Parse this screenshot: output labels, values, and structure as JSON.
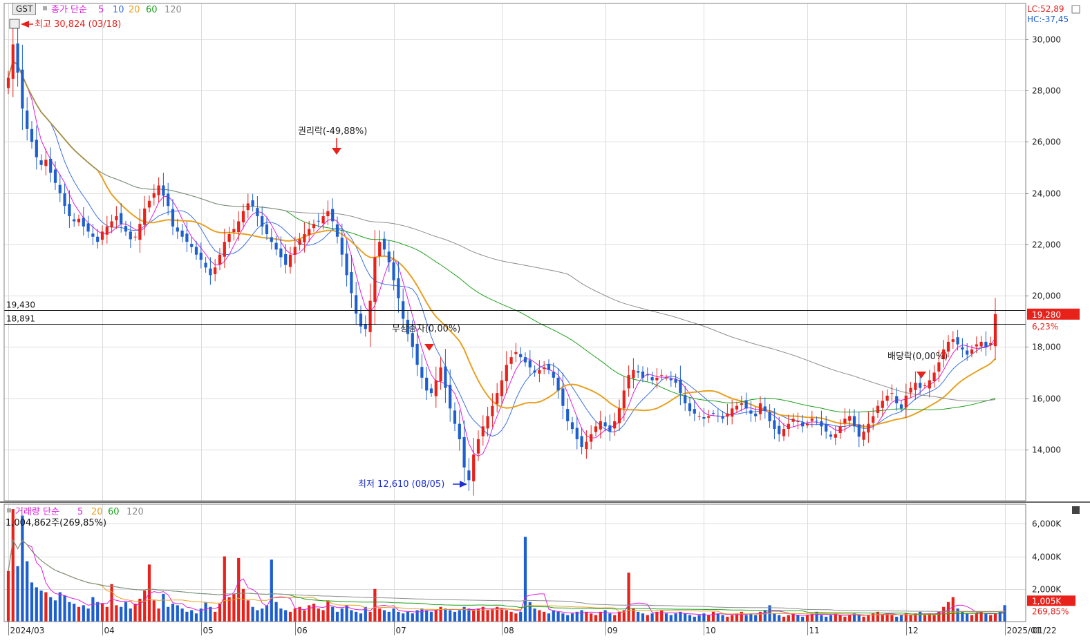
{
  "toolbar": {
    "code_label": "GST",
    "price_legend": {
      "label": "종가 단순",
      "periods": [
        "5",
        "10",
        "20",
        "60",
        "120"
      ]
    },
    "volume_legend": {
      "label": "거래량 단순",
      "periods": [
        "5",
        "20",
        "60",
        "120"
      ]
    },
    "lc": "LC:52,89",
    "hc": "HC:-37,45"
  },
  "colors": {
    "up": "#e8211b",
    "down": "#1d5fcf",
    "ma5": "#e01ce0",
    "ma10": "#3a6fe0",
    "ma20": "#e8a020",
    "ma60": "#1aa01a",
    "ma120": "#8c8c8c",
    "grid": "#dcdcdc",
    "frame": "#808080",
    "bg": "#ffffff"
  },
  "chart_data": [
    {
      "type": "candlestick",
      "title": "",
      "ylim": [
        12000,
        31400
      ],
      "yticks": [
        14000,
        16000,
        18000,
        20000,
        22000,
        24000,
        26000,
        28000,
        30000
      ],
      "ytick_labels": [
        "14,000",
        "16,000",
        "18,000",
        "20,000",
        "22,000",
        "24,000",
        "26,000",
        "28,000",
        "30,000"
      ],
      "x_months": [
        "2024/03",
        "04",
        "05",
        "06",
        "07",
        "08",
        "09",
        "10",
        "11",
        "12",
        "2025/01"
      ],
      "x_last_label": "01/22",
      "hlines": [
        {
          "label": "19,430",
          "value": 19430
        },
        {
          "label": "18,891",
          "value": 18891
        }
      ],
      "last_price": {
        "label": "19,280",
        "change": "6,23%",
        "value": 19280
      },
      "annotations": [
        {
          "text": "최고 30,824 (03/18)",
          "value": 30824,
          "color": "#e8211b"
        },
        {
          "text": "권리락(-49,88%)",
          "value": 26000,
          "color": "#222222"
        },
        {
          "text": "무상증자(0,00%)",
          "value": 18500,
          "color": "#222222"
        },
        {
          "text": "최저 12,610 (08/05)",
          "value": 12610,
          "color": "#1d2fcf"
        },
        {
          "text": "배당락(0,00%)",
          "value": 17800,
          "color": "#222222"
        }
      ],
      "close_series": [
        28500,
        29800,
        28700,
        27300,
        26500,
        26000,
        25400,
        25100,
        25300,
        24800,
        24400,
        24000,
        23500,
        23100,
        22900,
        23000,
        22700,
        22500,
        22300,
        22100,
        22500,
        22700,
        22900,
        23100,
        22800,
        22500,
        22200,
        22300,
        22800,
        23400,
        23700,
        24000,
        24300,
        23900,
        23500,
        22700,
        22500,
        22300,
        22100,
        21900,
        21600,
        21400,
        21100,
        20800,
        21100,
        21600,
        22100,
        22400,
        22600,
        22900,
        23300,
        23600,
        23500,
        23100,
        22700,
        22400,
        22100,
        21800,
        21500,
        21200,
        21600,
        21900,
        22200,
        22400,
        22600,
        22800,
        22900,
        23100,
        23300,
        22900,
        22300,
        21600,
        20800,
        20100,
        19300,
        18800,
        18700,
        19800,
        21500,
        22100,
        21800,
        21300,
        20600,
        19900,
        19100,
        18500,
        18000,
        17300,
        16800,
        16300,
        16200,
        16700,
        17200,
        16400,
        15600,
        15000,
        14400,
        13300,
        12800,
        13800,
        14400,
        14900,
        15300,
        15700,
        16200,
        16700,
        17300,
        17600,
        17800,
        17600,
        17400,
        17200,
        17000,
        17100,
        17200,
        17100,
        16800,
        16300,
        15700,
        15100,
        14800,
        14400,
        14100,
        14300,
        14600,
        14900,
        15100,
        14900,
        14700,
        15100,
        15600,
        16300,
        16900,
        17100,
        17000,
        16800,
        16900,
        16700,
        16800,
        16900,
        16800,
        16700,
        16600,
        16200,
        15800,
        15500,
        15400,
        15300,
        15200,
        15300,
        15400,
        15300,
        15200,
        15400,
        15600,
        15700,
        15800,
        15600,
        15400,
        15300,
        15800,
        15500,
        15100,
        14800,
        14600,
        14800,
        15000,
        15200,
        15100,
        14900,
        15000,
        15200,
        15100,
        14900,
        14700,
        14500,
        14600,
        14900,
        15200,
        15300,
        14900,
        14500,
        14700,
        15000,
        15300,
        15700,
        15900,
        16100,
        16200,
        15800,
        15600,
        16100,
        16400,
        16600,
        16400,
        16500,
        16700,
        17000,
        17400,
        17900,
        18200,
        18300,
        18100,
        17900,
        17700,
        17900,
        18100,
        18200,
        18000,
        18150,
        19280
      ],
      "ma_periods": [
        5,
        10,
        20,
        60,
        120
      ],
      "volume": {
        "title": "",
        "ylim": [
          0,
          7200
        ],
        "yticks": [
          2000,
          4000,
          6000
        ],
        "ytick_labels": [
          "2,000K",
          "4,000K",
          "6,000K"
        ],
        "unit": "K",
        "last_label": "1,005K",
        "last_change": "269,85%",
        "last_day_text": "1,004,862주(269,85%)",
        "values": [
          3100,
          6900,
          3400,
          6500,
          3700,
          2400,
          2100,
          1900,
          1800,
          1500,
          1300,
          1800,
          1600,
          1200,
          1100,
          900,
          1000,
          800,
          1500,
          1200,
          1100,
          900,
          2300,
          1000,
          900,
          1200,
          800,
          1100,
          1400,
          1900,
          3500,
          1300,
          800,
          1700,
          900,
          1100,
          1000,
          800,
          600,
          700,
          500,
          800,
          1200,
          900,
          600,
          1100,
          4000,
          1500,
          1700,
          3900,
          2000,
          1300,
          900,
          700,
          800,
          1000,
          3800,
          1200,
          800,
          700,
          600,
          800,
          900,
          700,
          1000,
          1100,
          800,
          700,
          1300,
          900,
          600,
          800,
          1000,
          700,
          600,
          500,
          900,
          600,
          2000,
          800,
          700,
          600,
          800,
          600,
          500,
          600,
          500,
          700,
          800,
          700,
          600,
          700,
          900,
          800,
          700,
          600,
          700,
          900,
          800,
          700,
          800,
          900,
          700,
          800,
          900,
          800,
          700,
          600,
          500,
          600,
          5200,
          1200,
          800,
          700,
          600,
          500,
          700,
          600,
          500,
          400,
          500,
          600,
          700,
          600,
          500,
          400,
          600,
          700,
          500,
          400,
          600,
          700,
          3000,
          800,
          600,
          500,
          400,
          500,
          600,
          700,
          500,
          400,
          500,
          600,
          500,
          400,
          300,
          400,
          500,
          400,
          600,
          500,
          400,
          300,
          400,
          500,
          600,
          400,
          500,
          400,
          600,
          700,
          1000,
          500,
          400,
          300,
          400,
          500,
          400,
          300,
          400,
          500,
          600,
          400,
          300,
          400,
          500,
          400,
          300,
          400,
          500,
          400,
          300,
          400,
          500,
          600,
          400,
          500,
          400,
          300,
          400,
          500,
          400,
          500,
          600,
          400,
          500,
          400,
          600,
          900,
          1200,
          1500,
          800,
          600,
          500,
          400,
          500,
          600,
          500,
          400,
          500,
          600,
          1005
        ],
        "ma_periods": [
          5,
          20,
          60,
          120
        ]
      }
    }
  ]
}
